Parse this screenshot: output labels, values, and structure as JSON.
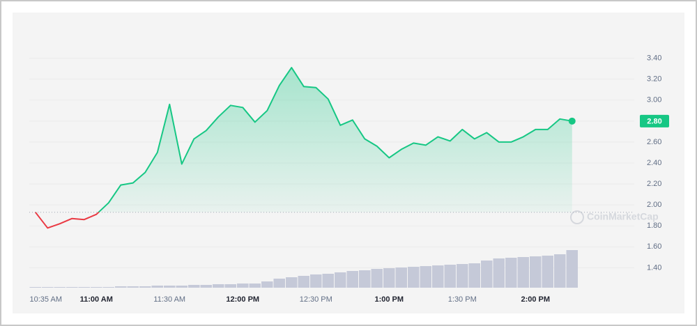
{
  "chart_data": {
    "type": "line",
    "categories": [
      "10:35 AM",
      null,
      null,
      null,
      null,
      "11:00 AM",
      null,
      null,
      null,
      null,
      null,
      "11:30 AM",
      null,
      null,
      null,
      null,
      null,
      "12:00 PM",
      null,
      null,
      null,
      null,
      null,
      "12:30 PM",
      null,
      null,
      null,
      null,
      null,
      "1:00 PM",
      null,
      null,
      null,
      null,
      null,
      "1:30 PM",
      null,
      null,
      null,
      null,
      null,
      "2:00 PM",
      null,
      null,
      null
    ],
    "values": [
      1.93,
      1.78,
      1.82,
      1.87,
      1.86,
      1.91,
      2.02,
      2.19,
      2.21,
      2.31,
      2.5,
      2.96,
      2.39,
      2.63,
      2.71,
      2.84,
      2.95,
      2.93,
      2.79,
      2.9,
      3.14,
      3.31,
      3.13,
      3.12,
      3.01,
      2.76,
      2.81,
      2.63,
      2.56,
      2.45,
      2.53,
      2.59,
      2.57,
      2.65,
      2.61,
      2.72,
      2.63,
      2.69,
      2.6,
      2.6,
      2.65,
      2.72,
      2.72,
      2.82,
      2.8
    ],
    "volume": [
      1,
      1,
      1,
      1,
      1,
      1,
      1,
      2,
      2,
      2,
      3,
      3,
      3,
      4,
      4,
      5,
      5,
      6,
      6,
      9,
      13,
      15,
      17,
      19,
      20,
      22,
      24,
      25,
      27,
      28,
      29,
      30,
      31,
      32,
      33,
      34,
      35,
      39,
      42,
      43,
      44,
      45,
      46,
      48,
      54
    ],
    "up_color": "#16c784",
    "down_color": "#ea3943",
    "volume_color": "#c5c9d8",
    "last_price_label": "2.80",
    "watermark": "CoinMarketCap",
    "ylim": [
      1.21,
      3.55
    ],
    "yticks": [
      {
        "value": 1.4,
        "label": "1.40"
      },
      {
        "value": 1.6,
        "label": "1.60"
      },
      {
        "value": 1.8,
        "label": "1.80"
      },
      {
        "value": 2.0,
        "label": "2.00"
      },
      {
        "value": 2.2,
        "label": "2.20"
      },
      {
        "value": 2.4,
        "label": "2.40"
      },
      {
        "value": 2.6,
        "label": "2.60"
      },
      {
        "value": 2.8,
        "label": "2.80"
      },
      {
        "value": 3.0,
        "label": "3.00"
      },
      {
        "value": 3.2,
        "label": "3.20"
      },
      {
        "value": 3.4,
        "label": "3.40"
      }
    ],
    "grid": true
  }
}
